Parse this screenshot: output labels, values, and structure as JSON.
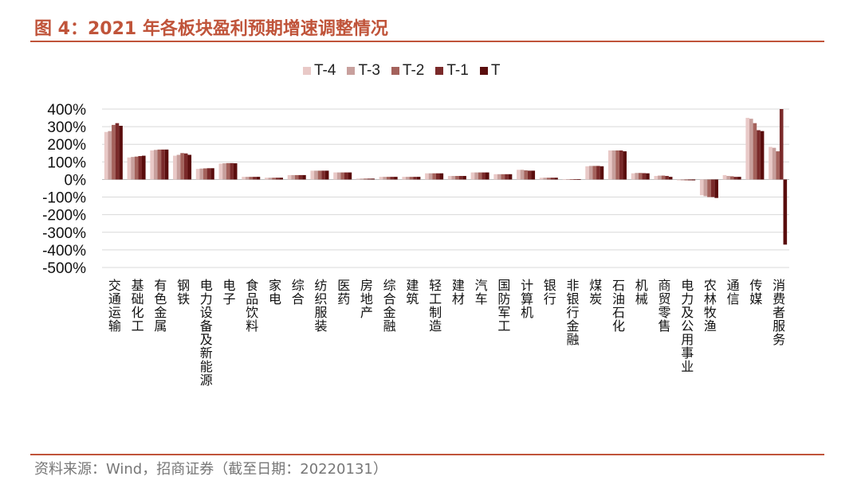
{
  "figure": {
    "title": "图 4：2021 年各板块盈利预期增速调整情况",
    "source": "资料来源：Wind，招商证券（截至日期：20220131）"
  },
  "colors": {
    "accent": "#c0543a",
    "series": [
      "#e9c9c7",
      "#c8a09d",
      "#a4625c",
      "#7a2a2a",
      "#5a0d0d"
    ]
  },
  "chart_data": {
    "type": "bar",
    "categories": [
      "交通运输",
      "基础化工",
      "有色金属",
      "钢铁",
      "电力设备及新能源",
      "电子",
      "食品饮料",
      "家电",
      "综合",
      "纺织服装",
      "医药",
      "房地产",
      "综合金融",
      "建筑",
      "轻工制造",
      "建材",
      "汽车",
      "国防军工",
      "计算机",
      "银行",
      "非银行金融",
      "煤炭",
      "石油石化",
      "机械",
      "商贸零售",
      "电力及公用事业",
      "农林牧渔",
      "通信",
      "传媒",
      "消费者服务"
    ],
    "series": [
      {
        "name": "T-4",
        "values": [
          270,
          125,
          165,
          135,
          60,
          90,
          15,
          10,
          25,
          50,
          40,
          5,
          15,
          15,
          35,
          20,
          40,
          30,
          55,
          10,
          2,
          75,
          165,
          35,
          20,
          -5,
          -90,
          25,
          350,
          185
        ]
      },
      {
        "name": "T-3",
        "values": [
          275,
          128,
          168,
          140,
          62,
          92,
          15,
          10,
          25,
          50,
          40,
          5,
          15,
          15,
          35,
          20,
          40,
          30,
          55,
          10,
          2,
          77,
          165,
          37,
          22,
          -5,
          -95,
          20,
          345,
          180
        ]
      },
      {
        "name": "T-2",
        "values": [
          310,
          130,
          170,
          150,
          63,
          93,
          15,
          10,
          25,
          50,
          40,
          5,
          15,
          15,
          35,
          20,
          40,
          30,
          52,
          10,
          2,
          77,
          165,
          37,
          22,
          -5,
          -100,
          18,
          320,
          160
        ]
      },
      {
        "name": "T-1",
        "values": [
          320,
          133,
          170,
          148,
          64,
          93,
          15,
          10,
          25,
          50,
          40,
          5,
          15,
          15,
          35,
          20,
          40,
          30,
          50,
          10,
          2,
          77,
          165,
          36,
          20,
          -5,
          -100,
          15,
          280,
          400
        ]
      },
      {
        "name": "T",
        "values": [
          305,
          135,
          170,
          140,
          64,
          92,
          15,
          10,
          25,
          50,
          40,
          5,
          15,
          15,
          35,
          20,
          40,
          30,
          50,
          10,
          2,
          75,
          160,
          35,
          15,
          -5,
          -105,
          15,
          275,
          -370
        ]
      }
    ],
    "y_ticks": [
      "400%",
      "300%",
      "200%",
      "100%",
      "0%",
      "-100%",
      "-200%",
      "-300%",
      "-400%",
      "-500%"
    ],
    "ylim": [
      -500,
      400
    ],
    "grid": true,
    "legend": "top-center"
  }
}
